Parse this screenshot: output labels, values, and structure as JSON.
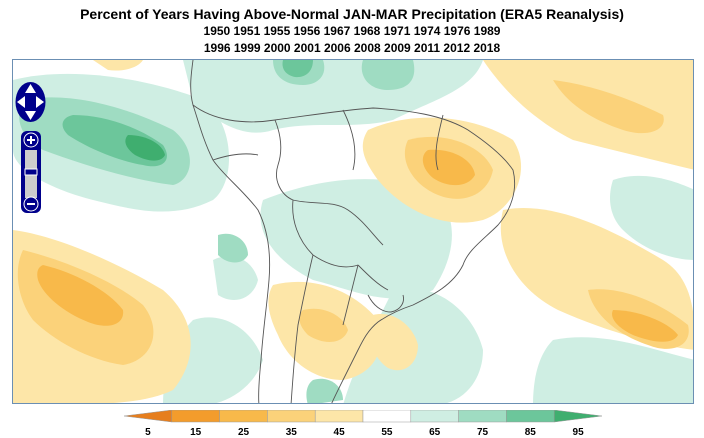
{
  "title": "Percent of Years Having Above-Normal JAN-MAR Precipitation (ERA5 Reanalysis)",
  "years_line1": "1950 1951 1955 1956 1967 1968 1971 1974 1976 1989",
  "years_line2": "1996 1999 2000 2001 2006 2008 2009 2011 2012 2018",
  "map_controls": {
    "pan": [
      "pan-up",
      "pan-down",
      "pan-left",
      "pan-right"
    ],
    "zoom": [
      "zoom-in",
      "zoom-out"
    ]
  },
  "colorbar": {
    "ticks": [
      "5",
      "15",
      "25",
      "35",
      "45",
      "55",
      "65",
      "75",
      "85",
      "95"
    ],
    "colors": [
      "#e67e1e",
      "#f39c2c",
      "#f8b94a",
      "#fbd27a",
      "#fde6a8",
      "#ffffff",
      "#cfeee3",
      "#9fdcc2",
      "#6cc69b",
      "#3fae6f"
    ]
  },
  "accent_colors": {
    "dry_strong": "#f5a623",
    "dry_light": "#fde6a8",
    "wet_light": "#cfeee3",
    "wet_strong": "#3fae6f",
    "control": "#00008b"
  }
}
